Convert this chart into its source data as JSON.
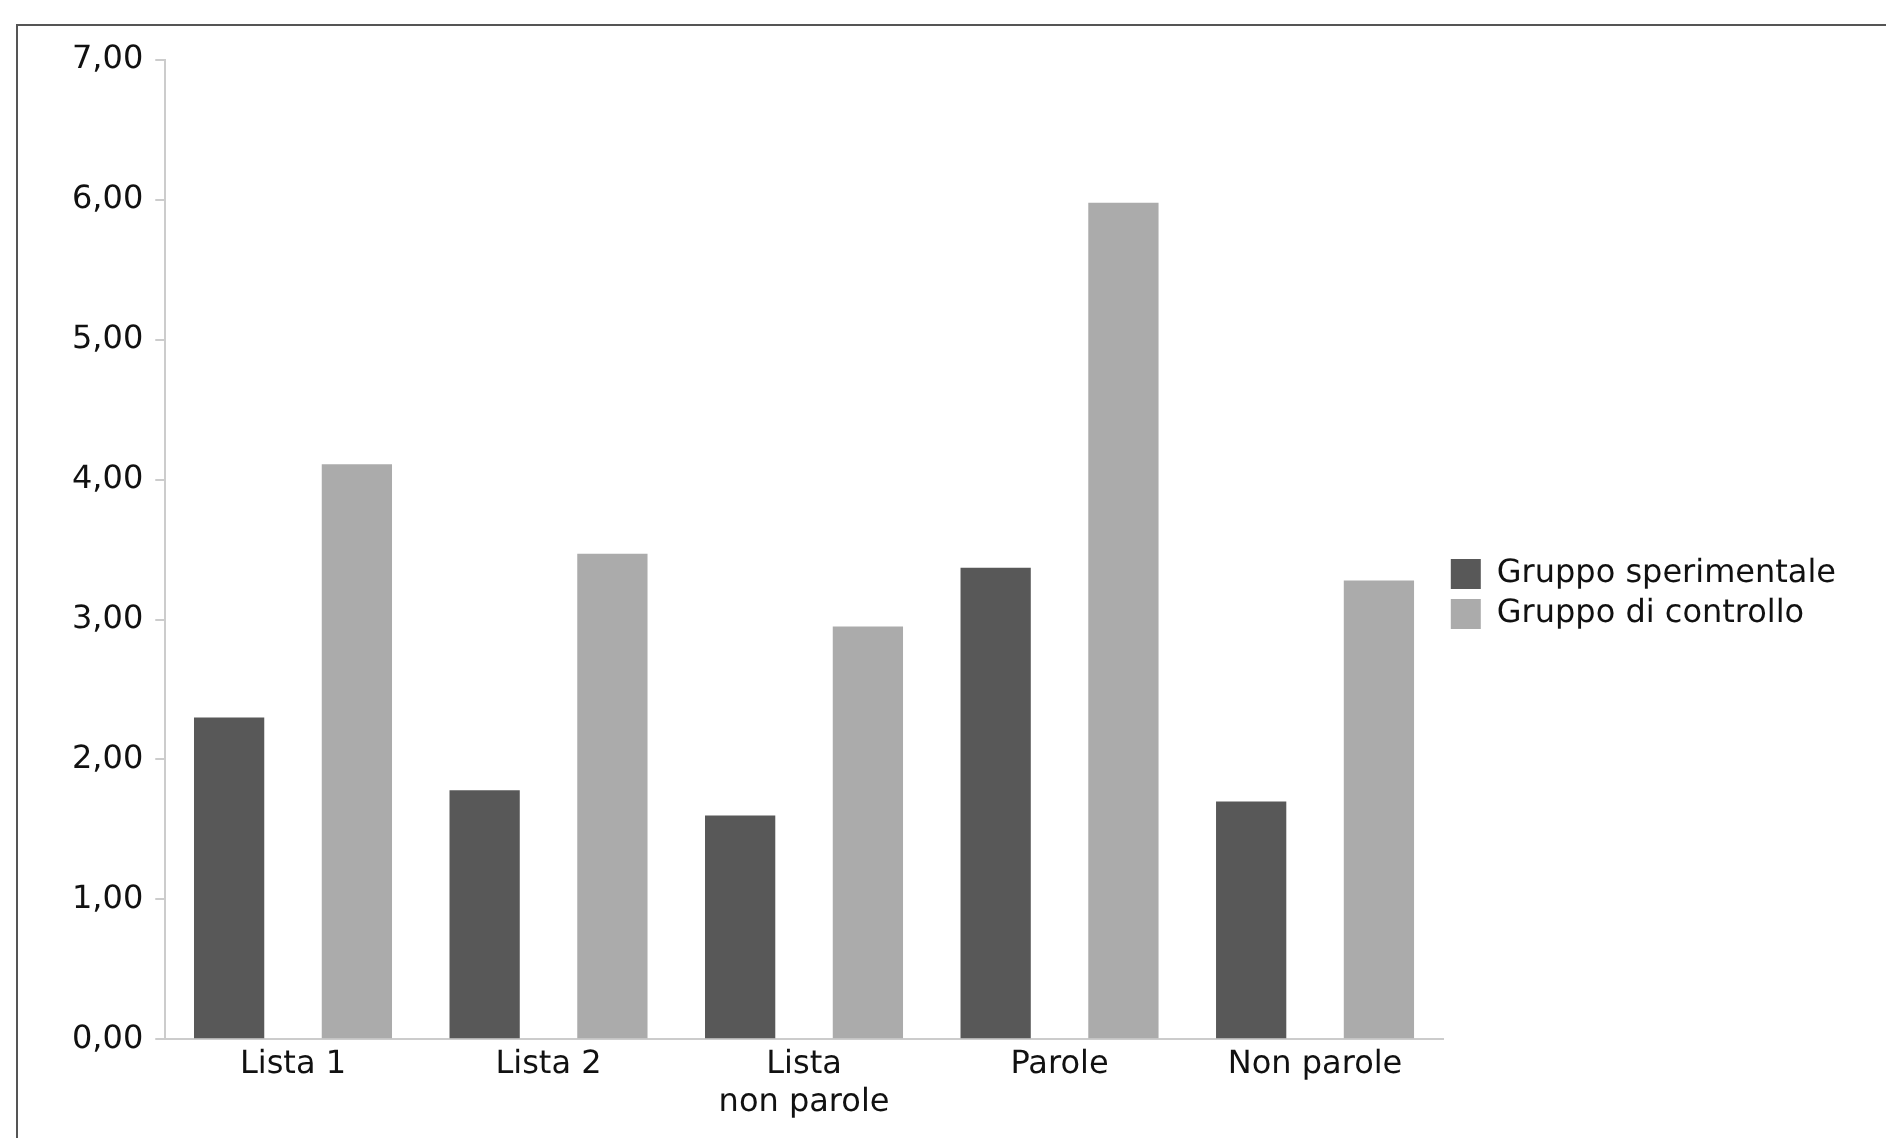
{
  "chart_data": {
    "type": "bar",
    "categories": [
      "Lista 1",
      "Lista 2",
      "Lista non parole",
      "Parole",
      "Non parole"
    ],
    "series": [
      {
        "name": "Gruppo sperimentale",
        "color": "#585858",
        "values": [
          2.3,
          1.78,
          1.6,
          3.37,
          1.7
        ]
      },
      {
        "name": "Gruppo di controllo",
        "color": "#ababab",
        "values": [
          4.11,
          3.47,
          2.95,
          5.98,
          3.28
        ]
      }
    ],
    "ylim": [
      0,
      7
    ],
    "yticks": [
      {
        "value": 0,
        "label": "0,00"
      },
      {
        "value": 1,
        "label": "1,00"
      },
      {
        "value": 2,
        "label": "2,00"
      },
      {
        "value": 3,
        "label": "3,00"
      },
      {
        "value": 4,
        "label": "4,00"
      },
      {
        "value": 5,
        "label": "5,00"
      },
      {
        "value": 6,
        "label": "6,00"
      },
      {
        "value": 7,
        "label": "7,00"
      }
    ],
    "grid": false,
    "legend": "right"
  }
}
